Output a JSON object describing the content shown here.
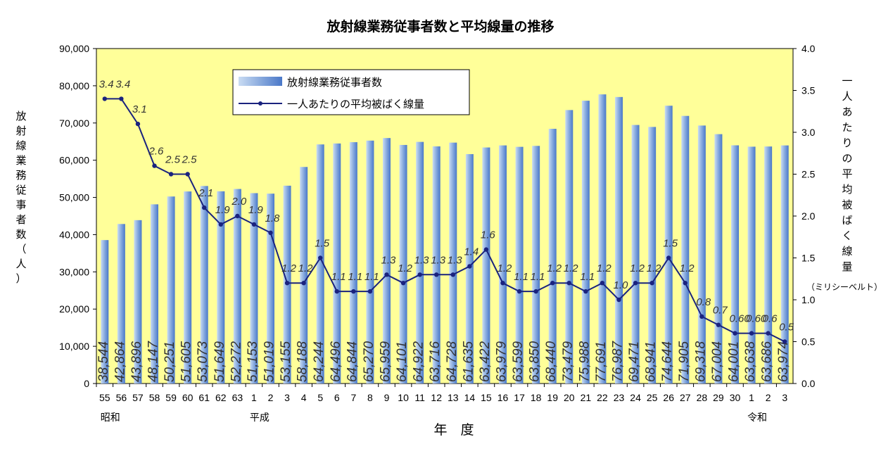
{
  "chart_data": {
    "type": "bar+line",
    "title": "放射線業務従事者数と平均線量の推移",
    "xlabel": "年　度",
    "ylabel_left": "放射線業務従事者数（人）",
    "ylabel_right": "一人あたりの平均被ばく線量",
    "ylabel_right_unit": "（ミリシーベルト）",
    "ylim_left": [
      0,
      90000
    ],
    "ylim_right": [
      0,
      4.0
    ],
    "yticks_left": [
      "0",
      "10,000",
      "20,000",
      "30,000",
      "40,000",
      "50,000",
      "60,000",
      "70,000",
      "80,000",
      "90,000"
    ],
    "yticks_right": [
      "0.0",
      "0.5",
      "1.0",
      "1.5",
      "2.0",
      "2.5",
      "3.0",
      "3.5",
      "4.0"
    ],
    "categories": [
      "55",
      "56",
      "57",
      "58",
      "59",
      "60",
      "61",
      "62",
      "63",
      "1",
      "2",
      "3",
      "4",
      "5",
      "6",
      "7",
      "8",
      "9",
      "10",
      "11",
      "12",
      "13",
      "14",
      "15",
      "16",
      "17",
      "18",
      "19",
      "20",
      "21",
      "22",
      "23",
      "24",
      "25",
      "26",
      "27",
      "28",
      "29",
      "30",
      "1",
      "2",
      "3"
    ],
    "era_labels": [
      {
        "index": 0,
        "text": "昭和"
      },
      {
        "index": 9,
        "text": "平成"
      },
      {
        "index": 39,
        "text": "令和"
      }
    ],
    "series": [
      {
        "name": "放射線業務従事者数",
        "type": "bar",
        "axis": "left",
        "values": [
          38544,
          42864,
          43896,
          48147,
          50251,
          51605,
          53073,
          51649,
          52272,
          51153,
          51019,
          53155,
          58188,
          64244,
          64496,
          64844,
          65270,
          65959,
          64101,
          64922,
          63716,
          64728,
          61635,
          63422,
          63979,
          63599,
          63850,
          68440,
          73479,
          75988,
          77691,
          76987,
          69471,
          68941,
          74644,
          71905,
          69318,
          67004,
          64001,
          63638,
          63686,
          63974
        ],
        "value_labels": [
          "38,544",
          "42,864",
          "43,896",
          "48,147",
          "50,251",
          "51,605",
          "53,073",
          "51,649",
          "52,272",
          "51,153",
          "51,019",
          "53,155",
          "58,188",
          "64,244",
          "64,496",
          "64,844",
          "65,270",
          "65,959",
          "64,101",
          "64,922",
          "63,716",
          "64,728",
          "61,635",
          "63,422",
          "63,979",
          "63,599",
          "63,850",
          "68,440",
          "73,479",
          "75,988",
          "77,691",
          "76,987",
          "69,471",
          "68,941",
          "74,644",
          "71,905",
          "69,318",
          "67,004",
          "64,001",
          "63,638",
          "63,686",
          "63,974"
        ]
      },
      {
        "name": "一人あたりの平均被ばく線量",
        "type": "line",
        "axis": "right",
        "values": [
          3.4,
          3.4,
          3.1,
          2.6,
          2.5,
          2.5,
          2.1,
          1.9,
          2.0,
          1.9,
          1.8,
          1.2,
          1.2,
          1.5,
          1.1,
          1.1,
          1.1,
          1.3,
          1.2,
          1.3,
          1.3,
          1.3,
          1.4,
          1.6,
          1.2,
          1.1,
          1.1,
          1.2,
          1.2,
          1.1,
          1.2,
          1.0,
          1.2,
          1.2,
          1.5,
          1.2,
          0.8,
          0.7,
          0.6,
          0.6,
          0.6,
          0.5
        ],
        "value_labels": [
          "3.4",
          "3.4",
          "3.1",
          "2.6",
          "2.5",
          "2.5",
          "2.1",
          "1.9",
          "2.0",
          "1.9",
          "1.8",
          "1.2",
          "1.2",
          "1.5",
          "1.1",
          "1.1",
          "1.1",
          "1.3",
          "1.2",
          "1.3",
          "1.3",
          "1.3",
          "1.4",
          "1.6",
          "1.2",
          "1.1",
          "1.1",
          "1.2",
          "1.2",
          "1.1",
          "1.2",
          "1.0",
          "1.2",
          "1.2",
          "1.5",
          "1.2",
          "0.8",
          "0.7",
          "0.60",
          "0.60",
          "0.6",
          "0.5"
        ]
      }
    ],
    "legend_position": "top-center",
    "colors": {
      "plot_bg": "#ffff99",
      "bar_light": "#c8d8f0",
      "bar_dark": "#4f7fcf",
      "line": "#1a237e",
      "marker": "#1a237e"
    },
    "grid": false
  }
}
